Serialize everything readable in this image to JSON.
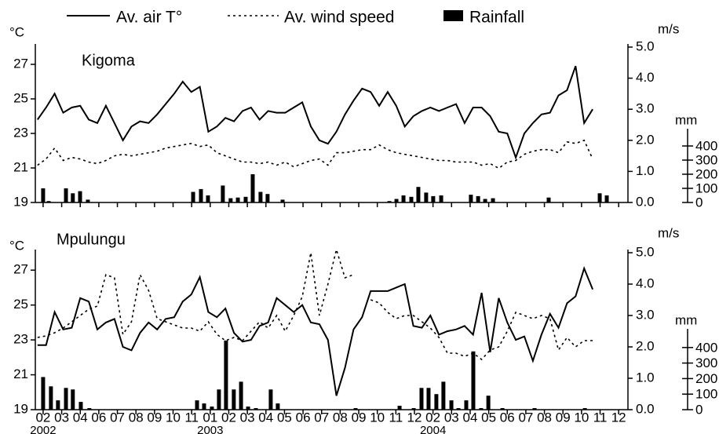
{
  "chart_data": [
    {
      "type": "combo",
      "title": "Kigoma",
      "legend": "top",
      "y_label": "°C",
      "y2_label": "m/s",
      "y3_label": "mm",
      "x": [
        -0.3,
        0.16,
        0.62,
        1.08,
        1.54,
        2.0,
        2.46,
        2.92,
        3.38,
        3.84,
        4.3,
        4.76,
        5.22,
        5.68,
        6.14,
        6.6,
        7.06,
        7.52,
        7.98,
        8.44,
        8.9,
        9.36,
        9.82,
        10.28,
        10.74,
        11.2,
        11.66,
        12.12,
        12.58,
        13.04,
        13.5,
        13.96,
        14.42,
        14.88,
        15.34,
        15.8,
        16.26,
        16.72,
        17.18,
        17.64,
        18.1,
        18.56,
        19.02,
        19.48,
        19.94,
        20.4,
        20.86,
        21.32,
        21.78,
        22.24,
        22.7,
        23.16,
        23.62,
        24.08,
        24.54,
        25.0,
        25.46,
        25.92,
        26.38,
        26.84,
        27.3,
        27.76,
        28.22,
        28.68,
        29.14,
        29.6
      ],
      "xlim": [
        -0.42,
        31.5
      ],
      "xticks": [
        0,
        1,
        2,
        3,
        4,
        5,
        6,
        7,
        8,
        9,
        10,
        11,
        12,
        13,
        14,
        15,
        16,
        17,
        18,
        19,
        20,
        21,
        22,
        23,
        24,
        25,
        26,
        27,
        28,
        29,
        30,
        31
      ],
      "ylim": [
        19,
        28
      ],
      "yticks": [
        19,
        21,
        23,
        25,
        27
      ],
      "y2lim": [
        0,
        5
      ],
      "y2ticks": [
        {
          "value": 0,
          "label": "0.0"
        },
        {
          "value": 1,
          "label": "1.0"
        },
        {
          "value": 2,
          "label": "2.0"
        },
        {
          "value": 3,
          "label": "3.0"
        },
        {
          "value": 4,
          "label": "4.0"
        },
        {
          "value": 5,
          "label": "5.0"
        }
      ],
      "y3lim": [
        0,
        500
      ],
      "y3ticks": [
        0,
        100,
        200,
        300,
        400
      ],
      "series": [
        {
          "name": "Av. air T°",
          "type": "line",
          "color": "#000000",
          "values": [
            23.8,
            24.5,
            25.3,
            24.2,
            24.5,
            24.6,
            23.8,
            23.6,
            24.6,
            23.6,
            22.6,
            23.4,
            23.7,
            23.6,
            24.1,
            24.7,
            25.3,
            26.0,
            25.4,
            25.7,
            23.1,
            23.4,
            23.9,
            23.7,
            24.3,
            24.5,
            23.8,
            24.3,
            24.2,
            24.2,
            24.5,
            24.8,
            23.4,
            22.6,
            22.4,
            23.1,
            24.1,
            24.9,
            25.6,
            25.4,
            24.6,
            25.4,
            24.6,
            23.4,
            24.0,
            24.3,
            24.5,
            24.3,
            24.5,
            24.7,
            23.6,
            24.5,
            24.5,
            24.0,
            23.1,
            23.0,
            21.6,
            23.0,
            23.6,
            24.1,
            24.2,
            25.2,
            25.5,
            26.9,
            23.6,
            24.4
          ]
        },
        {
          "name": "Av. wind speed",
          "type": "line",
          "dash": "dotted",
          "axis": "y2",
          "color": "#000000",
          "values": [
            1.2,
            1.4,
            1.75,
            1.35,
            1.45,
            1.4,
            1.3,
            1.25,
            1.35,
            1.5,
            1.55,
            1.5,
            1.55,
            1.6,
            1.65,
            1.75,
            1.8,
            1.85,
            1.9,
            1.8,
            1.85,
            1.6,
            1.5,
            1.4,
            1.3,
            1.3,
            1.25,
            1.3,
            1.2,
            1.3,
            1.15,
            1.25,
            1.35,
            1.4,
            1.2,
            1.6,
            1.6,
            1.65,
            1.7,
            1.7,
            1.85,
            1.7,
            1.6,
            1.55,
            1.5,
            1.45,
            1.4,
            1.35,
            1.35,
            1.3,
            1.3,
            1.3,
            1.2,
            1.25,
            1.1,
            1.3,
            1.35,
            1.55,
            1.65,
            1.7,
            1.7,
            1.6,
            1.95,
            1.9,
            2.0,
            1.4
          ]
        },
        {
          "name": "Rainfall",
          "type": "bar",
          "axis": "y3",
          "color": "#000000",
          "x": [
            0,
            0.3,
            1.23,
            1.6,
            1.99,
            2.41,
            8.08,
            8.5,
            8.88,
            9.68,
            10.1,
            10.49,
            10.91,
            11.29,
            11.71,
            12.09,
            12.9,
            18.65,
            19.03,
            19.41,
            19.83,
            20.21,
            20.63,
            21.01,
            21.44,
            23.04,
            23.43,
            23.81,
            24.23,
            27.23,
            29.98,
            30.36
          ],
          "values": [
            100,
            10,
            100,
            65,
            80,
            20,
            75,
            95,
            50,
            120,
            30,
            35,
            40,
            200,
            75,
            60,
            20,
            10,
            25,
            50,
            40,
            110,
            70,
            45,
            50,
            55,
            45,
            25,
            30,
            35,
            65,
            50
          ]
        }
      ]
    },
    {
      "type": "combo",
      "title": "Mpulungu",
      "y_label": "°C",
      "y2_label": "m/s",
      "y3_label": "mm",
      "x": [
        -0.3,
        0.16,
        0.62,
        1.08,
        1.54,
        2.0,
        2.46,
        2.92,
        3.38,
        3.84,
        4.3,
        4.76,
        5.22,
        5.68,
        6.14,
        6.6,
        7.06,
        7.52,
        7.98,
        8.44,
        8.9,
        9.36,
        9.82,
        10.28,
        10.74,
        11.2,
        11.66,
        12.12,
        12.58,
        13.04,
        13.5,
        13.96,
        14.42,
        14.88,
        15.34,
        15.8,
        16.26,
        16.72,
        17.18,
        17.64,
        18.1,
        18.56,
        19.02,
        19.48,
        19.94,
        20.4,
        20.86,
        21.32,
        21.78,
        22.24,
        22.7,
        23.16,
        23.62,
        24.08,
        24.54,
        25.0,
        25.46,
        25.92,
        26.38,
        26.84,
        27.3,
        27.76,
        28.22,
        28.68,
        29.14,
        29.6
      ],
      "xlim": [
        -0.42,
        31.5
      ],
      "xticks": [
        {
          "value": 0,
          "label": "02"
        },
        {
          "value": 1,
          "label": "03"
        },
        {
          "value": 2,
          "label": "04"
        },
        {
          "value": 3,
          "label": "06"
        },
        {
          "value": 4,
          "label": "07"
        },
        {
          "value": 5,
          "label": "08"
        },
        {
          "value": 6,
          "label": "09"
        },
        {
          "value": 7,
          "label": "10"
        },
        {
          "value": 8,
          "label": "11"
        },
        {
          "value": 9,
          "label": "01"
        },
        {
          "value": 10,
          "label": "02"
        },
        {
          "value": 11,
          "label": "03"
        },
        {
          "value": 12,
          "label": "04"
        },
        {
          "value": 13,
          "label": "05"
        },
        {
          "value": 14,
          "label": "06"
        },
        {
          "value": 15,
          "label": "07"
        },
        {
          "value": 16,
          "label": "08"
        },
        {
          "value": 17,
          "label": "09"
        },
        {
          "value": 18,
          "label": "10"
        },
        {
          "value": 19,
          "label": "11"
        },
        {
          "value": 20,
          "label": "12"
        },
        {
          "value": 21,
          "label": "02"
        },
        {
          "value": 22,
          "label": "03"
        },
        {
          "value": 23,
          "label": "04"
        },
        {
          "value": 24,
          "label": "05"
        },
        {
          "value": 25,
          "label": "06"
        },
        {
          "value": 26,
          "label": "07"
        },
        {
          "value": 27,
          "label": "08"
        },
        {
          "value": 28,
          "label": "09"
        },
        {
          "value": 29,
          "label": "10"
        },
        {
          "value": 30,
          "label": "11"
        },
        {
          "value": 31,
          "label": "12"
        }
      ],
      "year_labels": [
        "2002",
        null,
        null,
        null,
        null,
        null,
        null,
        null,
        null,
        "2003",
        null,
        null,
        null,
        null,
        null,
        null,
        null,
        null,
        null,
        null,
        null,
        "2004",
        null,
        null,
        null,
        null,
        null,
        null,
        null,
        null,
        null,
        null
      ],
      "ylim": [
        19,
        28
      ],
      "yticks": [
        19,
        21,
        23,
        25,
        27
      ],
      "y2lim": [
        0,
        5
      ],
      "y2ticks": [
        {
          "value": 0,
          "label": "0.0"
        },
        {
          "value": 1,
          "label": "1.0"
        },
        {
          "value": 2,
          "label": "2.0"
        },
        {
          "value": 3,
          "label": "3.0"
        },
        {
          "value": 4,
          "label": "4.0"
        },
        {
          "value": 5,
          "label": "5.0"
        }
      ],
      "y3lim": [
        0,
        500
      ],
      "y3ticks": [
        0,
        100,
        200,
        300,
        400
      ],
      "series": [
        {
          "type": "line",
          "color": "#000000",
          "values": [
            22.7,
            22.7,
            24.6,
            23.6,
            23.7,
            25.4,
            25.2,
            23.6,
            24.0,
            24.2,
            22.6,
            22.4,
            23.4,
            24.0,
            23.6,
            24.2,
            24.3,
            25.2,
            25.6,
            26.6,
            24.6,
            24.3,
            24.8,
            23.4,
            22.9,
            23.0,
            23.8,
            24.0,
            25.4,
            25.0,
            24.6,
            25.0,
            24.0,
            23.9,
            23.0,
            19.8,
            21.4,
            23.6,
            24.3,
            25.8,
            25.8,
            25.8,
            26.0,
            26.2,
            23.8,
            23.7,
            24.4,
            23.3,
            23.5,
            23.6,
            23.8,
            23.3,
            25.7,
            22.3,
            25.4,
            24.0,
            23.0,
            23.2,
            21.8,
            23.3,
            24.5,
            23.7,
            25.1,
            25.5,
            27.1,
            25.9
          ]
        },
        {
          "type": "line",
          "dash": "dotted",
          "axis": "y2",
          "color": "#000000",
          "values": [
            2.3,
            2.35,
            2.45,
            2.6,
            2.8,
            3.0,
            3.2,
            3.3,
            4.3,
            4.2,
            2.4,
            2.8,
            4.3,
            3.8,
            2.9,
            2.8,
            2.7,
            2.6,
            2.6,
            2.5,
            2.8,
            2.4,
            2.2,
            2.3,
            2.2,
            2.5,
            2.8,
            2.6,
            3.0,
            2.5,
            3.0,
            3.6,
            5.0,
            3.0,
            4.0,
            5.1,
            4.2,
            4.3,
            null,
            3.5,
            3.4,
            3.1,
            2.9,
            3.0,
            3.0,
            2.8,
            2.6,
            2.3,
            1.8,
            1.8,
            1.7,
            1.8,
            1.6,
            1.9,
            2.0,
            2.5,
            3.1,
            3.0,
            2.9,
            3.0,
            2.9,
            1.9,
            2.3,
            2.0,
            2.2,
            2.2
          ]
        },
        {
          "type": "bar",
          "axis": "y3",
          "color": "#000000",
          "x": [
            0,
            0.42,
            0.8,
            1.23,
            1.6,
            2.03,
            2.49,
            8.29,
            8.67,
            9.09,
            9.47,
            9.85,
            10.27,
            10.66,
            11.04,
            11.46,
            12.26,
            12.64,
            16.83,
            19.2,
            19.96,
            20.38,
            20.76,
            21.18,
            21.56,
            21.99,
            22.37,
            22.79,
            23.17,
            23.59,
            23.98,
            24.74,
            26.47,
            29.18
          ],
          "values": [
            210,
            150,
            60,
            140,
            130,
            50,
            10,
            60,
            40,
            20,
            130,
            445,
            130,
            180,
            20,
            10,
            130,
            40,
            10,
            25,
            10,
            140,
            140,
            100,
            180,
            60,
            10,
            60,
            375,
            10,
            90,
            10,
            10,
            10
          ]
        }
      ]
    }
  ]
}
